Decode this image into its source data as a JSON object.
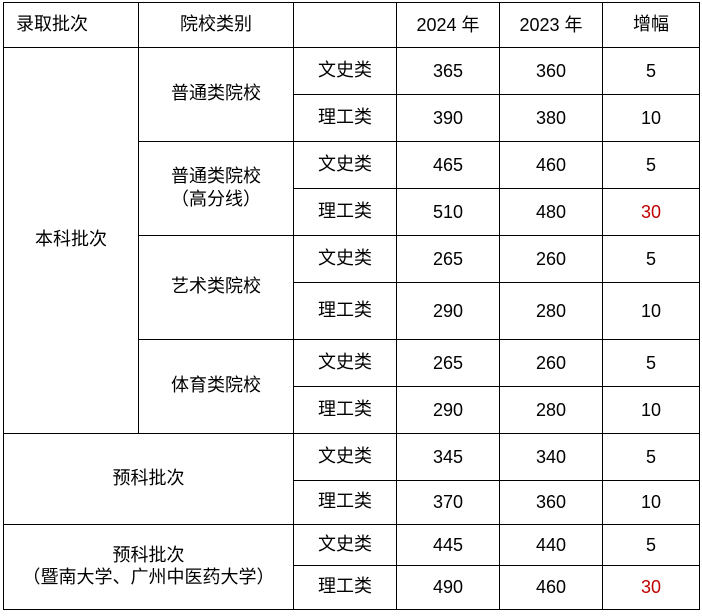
{
  "header": {
    "batch": "录取批次",
    "school_type": "院校类别",
    "blank": "",
    "year_2024": "2024 年",
    "year_2023": "2023 年",
    "increase": "增幅"
  },
  "batches": {
    "undergrad": "本科批次",
    "preparatory": "预科批次",
    "preparatory_special_line1": "预科批次",
    "preparatory_special_line2": "（暨南大学、广州中医药大学）"
  },
  "school_types": {
    "general": "普通类院校",
    "general_high_line1": "普通类院校",
    "general_high_line2": "（高分线）",
    "art": "艺术类院校",
    "sports": "体育类院校"
  },
  "subjects": {
    "arts": "文史类",
    "science": "理工类"
  },
  "rows": [
    {
      "y2024": "365",
      "y2023": "360",
      "inc": "5",
      "highlight": false
    },
    {
      "y2024": "390",
      "y2023": "380",
      "inc": "10",
      "highlight": false
    },
    {
      "y2024": "465",
      "y2023": "460",
      "inc": "5",
      "highlight": false
    },
    {
      "y2024": "510",
      "y2023": "480",
      "inc": "30",
      "highlight": true
    },
    {
      "y2024": "265",
      "y2023": "260",
      "inc": "5",
      "highlight": false
    },
    {
      "y2024": "290",
      "y2023": "280",
      "inc": "10",
      "highlight": false
    },
    {
      "y2024": "265",
      "y2023": "260",
      "inc": "5",
      "highlight": false
    },
    {
      "y2024": "290",
      "y2023": "280",
      "inc": "10",
      "highlight": false
    },
    {
      "y2024": "345",
      "y2023": "340",
      "inc": "5",
      "highlight": false
    },
    {
      "y2024": "370",
      "y2023": "360",
      "inc": "10",
      "highlight": false
    },
    {
      "y2024": "445",
      "y2023": "440",
      "inc": "5",
      "highlight": false
    },
    {
      "y2024": "490",
      "y2023": "460",
      "inc": "30",
      "highlight": true
    }
  ],
  "colors": {
    "highlight": "#c00000",
    "border": "#000000",
    "text": "#000000"
  }
}
